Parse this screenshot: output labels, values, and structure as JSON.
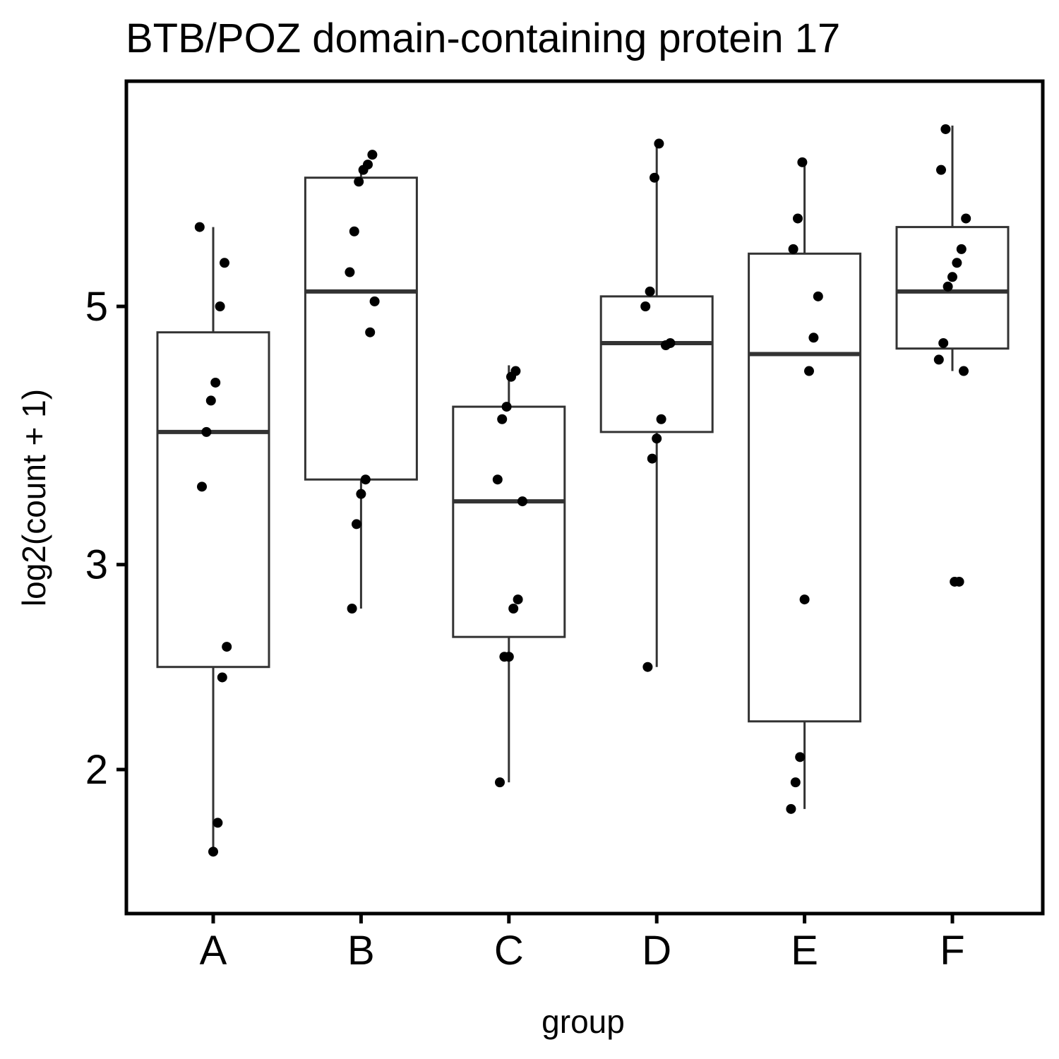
{
  "chart_data": {
    "type": "box",
    "title": "BTB/POZ domain-containing protein 17",
    "xlabel": "group",
    "ylabel": "log2(count + 1)",
    "y_scale": "log",
    "ylim": [
      1.65,
      7.2
    ],
    "yticks": [
      2,
      3,
      5
    ],
    "categories": [
      "A",
      "B",
      "C",
      "D",
      "E",
      "F"
    ],
    "boxes": [
      {
        "group": "A",
        "whisker_low": 1.7,
        "q1": 2.45,
        "median": 3.9,
        "q3": 4.75,
        "whisker_high": 5.85
      },
      {
        "group": "B",
        "whisker_low": 2.75,
        "q1": 3.55,
        "median": 5.15,
        "q3": 6.45,
        "whisker_high": 6.55
      },
      {
        "group": "C",
        "whisker_low": 1.95,
        "q1": 2.6,
        "median": 3.4,
        "q3": 4.1,
        "whisker_high": 4.45
      },
      {
        "group": "D",
        "whisker_low": 2.45,
        "q1": 3.9,
        "median": 4.65,
        "q3": 5.1,
        "whisker_high": 6.95
      },
      {
        "group": "E",
        "whisker_low": 1.85,
        "q1": 2.2,
        "median": 4.55,
        "q3": 5.55,
        "whisker_high": 6.7
      },
      {
        "group": "F",
        "whisker_low": 4.4,
        "q1": 4.6,
        "median": 5.15,
        "q3": 5.85,
        "whisker_high": 7.15
      }
    ],
    "points": [
      {
        "group": "A",
        "y": [
          5.85,
          5.45,
          5.0,
          4.3,
          4.15,
          3.9,
          3.5,
          2.55,
          2.4,
          1.8,
          1.7
        ]
      },
      {
        "group": "B",
        "y": [
          6.75,
          6.62,
          6.55,
          6.4,
          5.8,
          5.35,
          5.05,
          4.75,
          3.55,
          3.45,
          3.25,
          2.75
        ]
      },
      {
        "group": "C",
        "y": [
          4.4,
          4.35,
          4.1,
          4.0,
          3.55,
          3.4,
          2.8,
          2.75,
          2.5,
          2.5,
          1.95
        ]
      },
      {
        "group": "D",
        "y": [
          6.9,
          6.45,
          5.15,
          5.0,
          4.65,
          4.63,
          4.0,
          3.85,
          3.7,
          2.45
        ]
      },
      {
        "group": "E",
        "y": [
          6.65,
          5.95,
          5.6,
          5.1,
          4.7,
          4.4,
          2.8,
          2.05,
          1.95,
          1.85
        ]
      },
      {
        "group": "F",
        "y": [
          7.1,
          6.55,
          5.95,
          5.6,
          5.45,
          5.3,
          5.2,
          4.65,
          4.5,
          4.4,
          2.9,
          2.9
        ]
      }
    ]
  }
}
